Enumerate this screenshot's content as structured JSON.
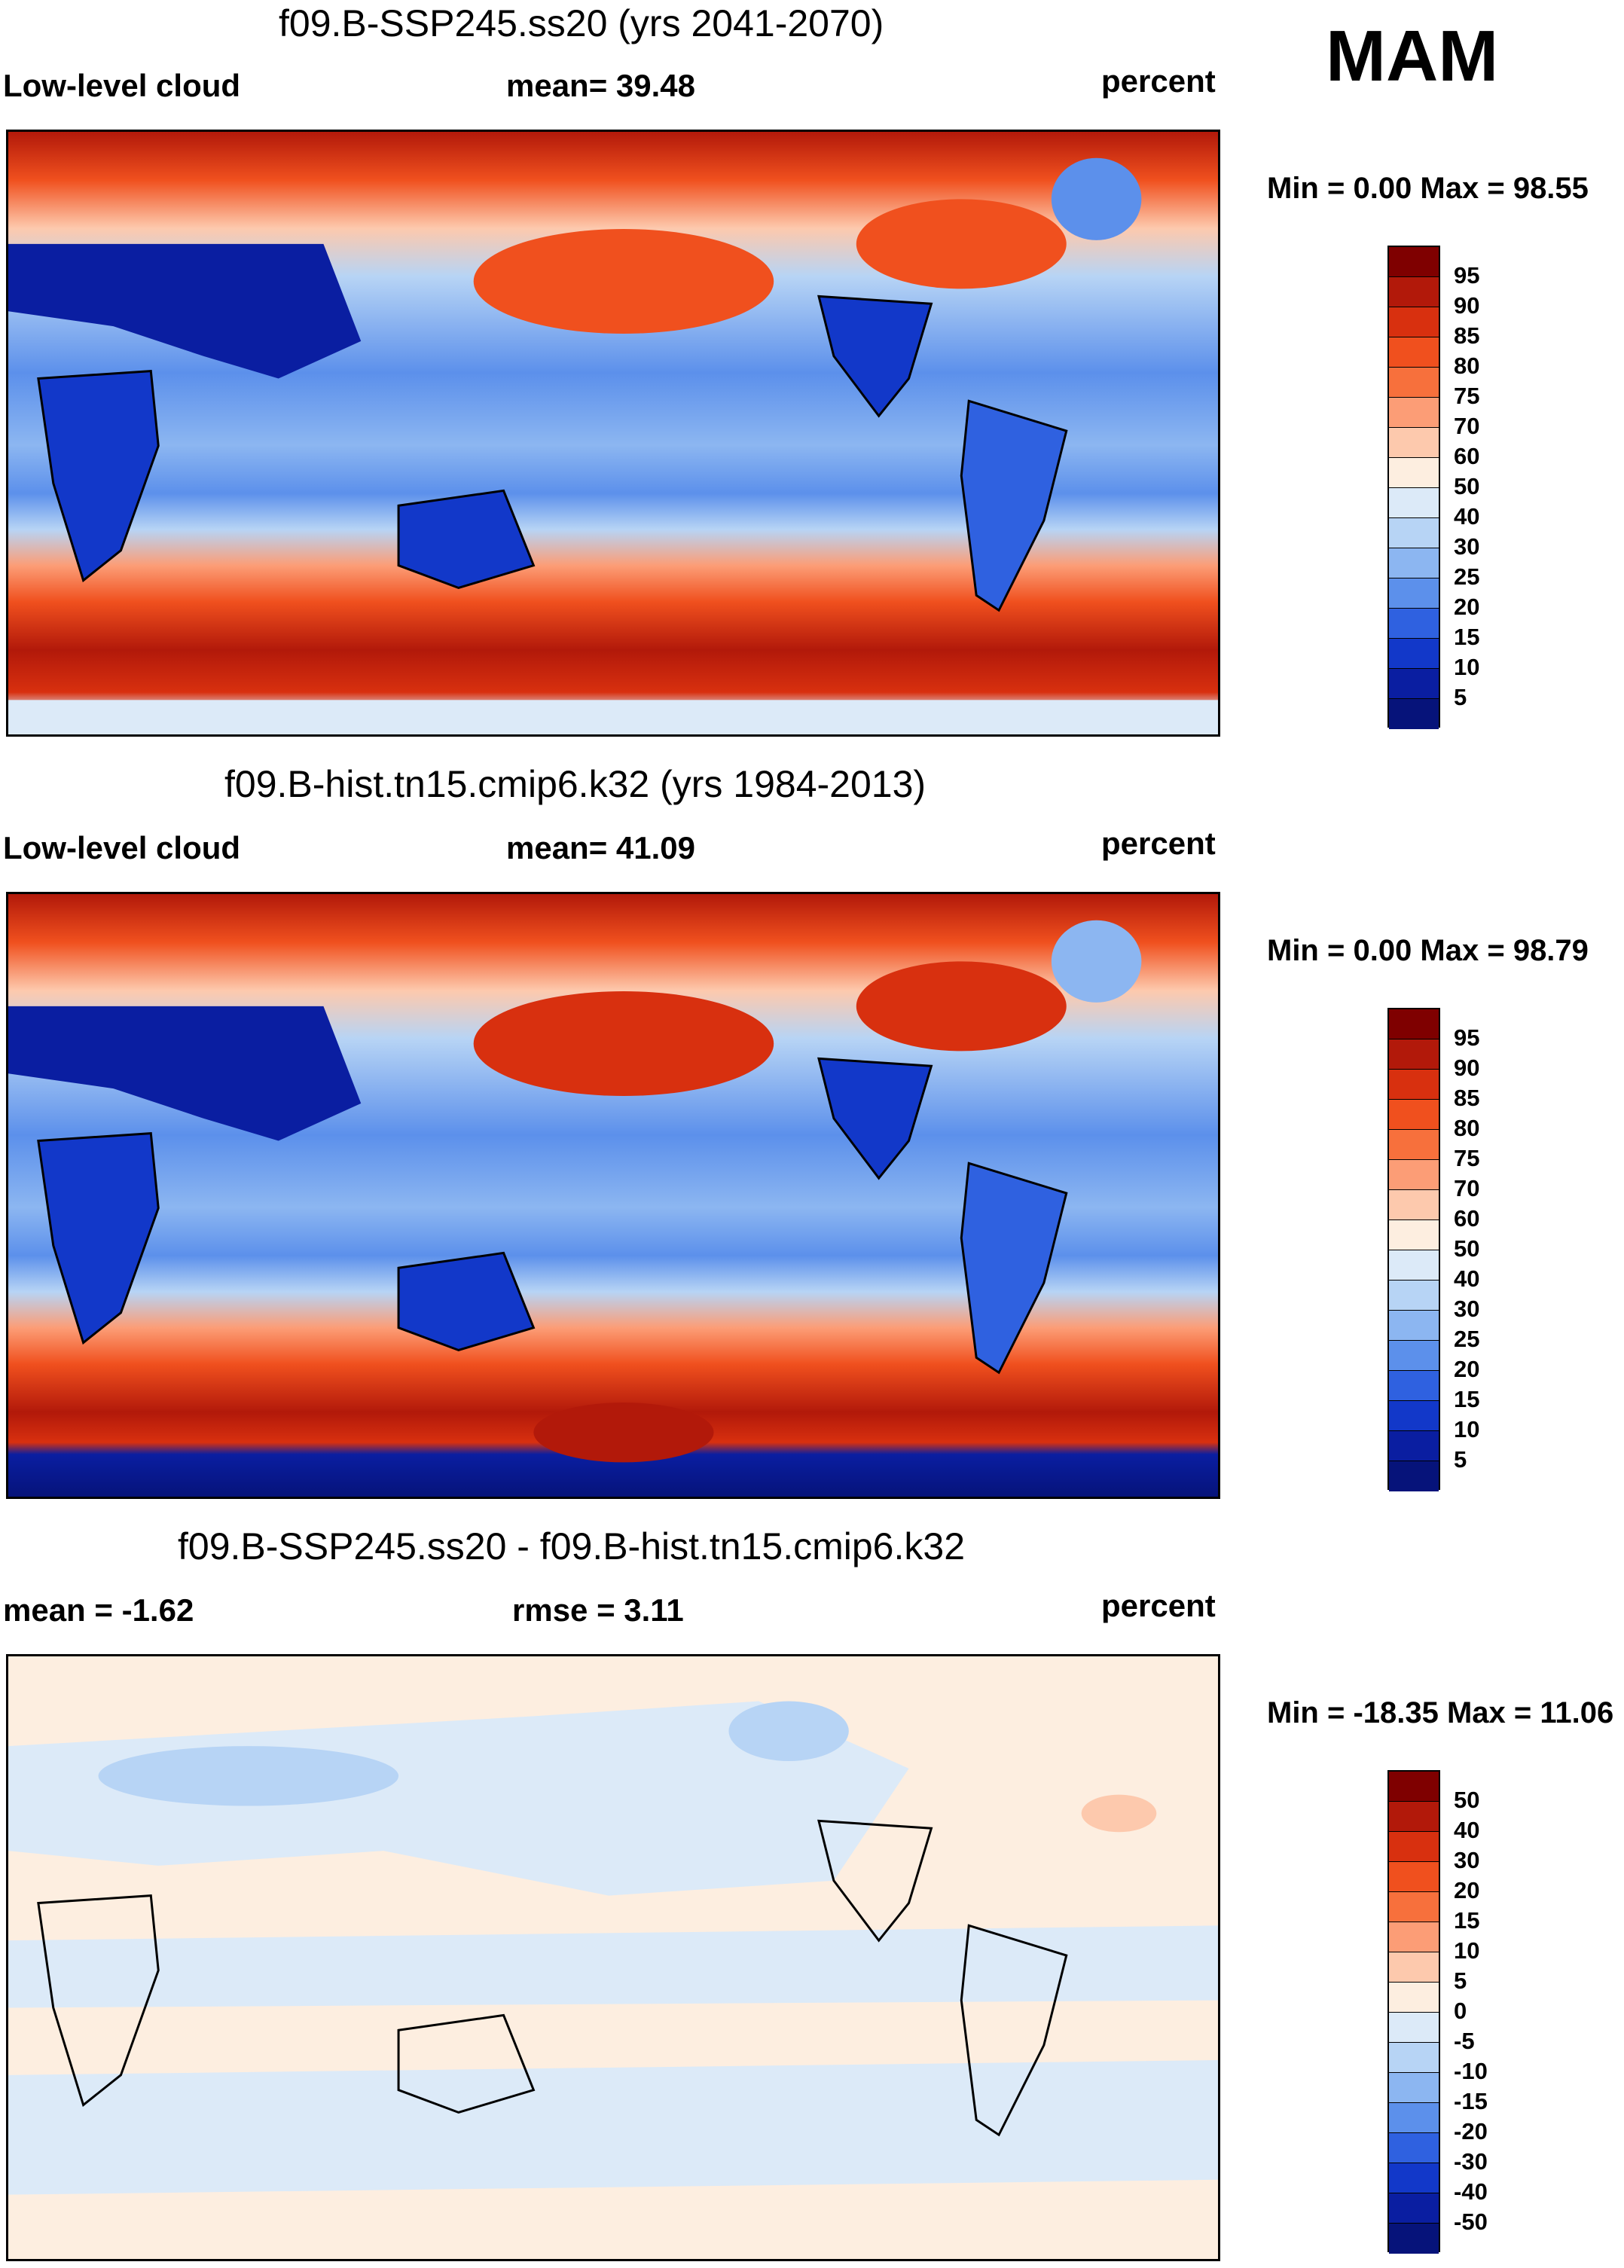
{
  "season": "MAM",
  "panels": [
    {
      "title": "f09.B-SSP245.ss20 (yrs 2041-2070)",
      "left_label": "Low-level cloud",
      "center_label": "mean=  39.48",
      "right_label": "percent",
      "minmax": "Min =   0.00 Max =  98.55",
      "levels": [
        "95",
        "90",
        "85",
        "80",
        "75",
        "70",
        "60",
        "50",
        "40",
        "30",
        "25",
        "20",
        "15",
        "10",
        "5"
      ],
      "colors": [
        "#7f0000",
        "#b2190a",
        "#d8300f",
        "#f0501e",
        "#f7703c",
        "#fc9d76",
        "#fdc9ad",
        "#fdeee0",
        "#dceaf8",
        "#b7d4f5",
        "#8cb6f1",
        "#5c90eb",
        "#2f61e0",
        "#1238c9",
        "#0a1ea1",
        "#06137a"
      ]
    },
    {
      "title": "f09.B-hist.tn15.cmip6.k32 (yrs 1984-2013)",
      "left_label": "Low-level cloud",
      "center_label": "mean=  41.09",
      "right_label": "percent",
      "minmax": "Min =   0.00 Max =  98.79",
      "levels": [
        "95",
        "90",
        "85",
        "80",
        "75",
        "70",
        "60",
        "50",
        "40",
        "30",
        "25",
        "20",
        "15",
        "10",
        "5"
      ],
      "colors": [
        "#7f0000",
        "#b2190a",
        "#d8300f",
        "#f0501e",
        "#f7703c",
        "#fc9d76",
        "#fdc9ad",
        "#fdeee0",
        "#dceaf8",
        "#b7d4f5",
        "#8cb6f1",
        "#5c90eb",
        "#2f61e0",
        "#1238c9",
        "#0a1ea1",
        "#06137a"
      ]
    },
    {
      "title": "f09.B-SSP245.ss20 - f09.B-hist.tn15.cmip6.k32",
      "left_label": "mean =  -1.62",
      "center_label": "rmse =    3.11",
      "right_label": "percent",
      "minmax": "Min = -18.35 Max =  11.06",
      "levels": [
        "50",
        "40",
        "30",
        "20",
        "15",
        "10",
        "5",
        "0",
        "-5",
        "-10",
        "-15",
        "-20",
        "-30",
        "-40",
        "-50"
      ],
      "colors": [
        "#7f0000",
        "#b2190a",
        "#d8300f",
        "#f0501e",
        "#f7703c",
        "#fc9d76",
        "#fdc9ad",
        "#fdeee0",
        "#dceaf8",
        "#b7d4f5",
        "#8cb6f1",
        "#5c90eb",
        "#2f61e0",
        "#1238c9",
        "#0a1ea1",
        "#06137a"
      ]
    }
  ]
}
